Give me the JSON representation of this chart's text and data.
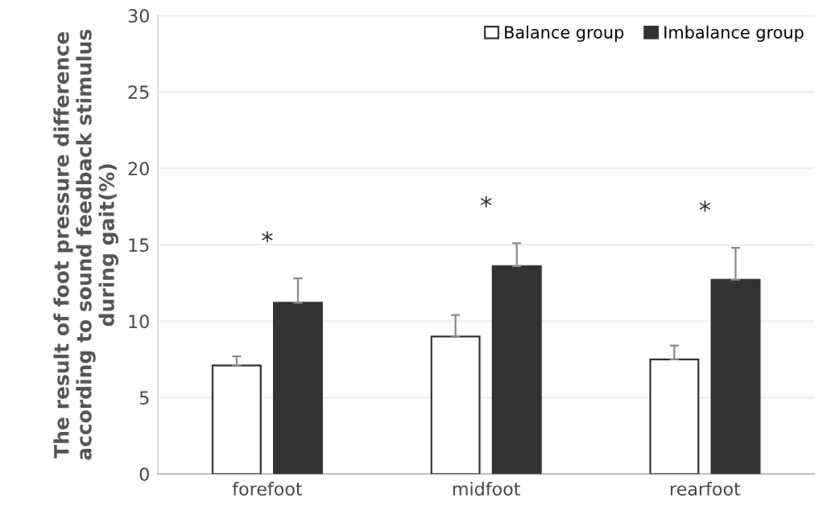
{
  "chart_data": {
    "type": "bar",
    "ylabel": "The result of foot pressure difference\naccording to sound feedback stimulus\nduring gait(%)",
    "categories": [
      "forefoot",
      "midfoot",
      "rearfoot"
    ],
    "series": [
      {
        "name": "Balance group",
        "color": "#ffffff",
        "values": [
          7.1,
          9.0,
          7.5
        ],
        "errors": [
          [
            7.1,
            7.7
          ],
          [
            9.0,
            10.4
          ],
          [
            7.5,
            8.4
          ]
        ]
      },
      {
        "name": "Imbalance group",
        "color": "#333333",
        "values": [
          11.2,
          13.6,
          12.7
        ],
        "errors": [
          [
            11.2,
            12.8
          ],
          [
            13.6,
            15.1
          ],
          [
            12.7,
            14.8
          ]
        ]
      }
    ],
    "annotations": [
      "*",
      "*",
      "*"
    ],
    "ylim": [
      0,
      30
    ],
    "yticks": [
      0,
      5,
      10,
      15,
      20,
      25,
      30
    ],
    "grid": "y",
    "legend": "top right"
  }
}
